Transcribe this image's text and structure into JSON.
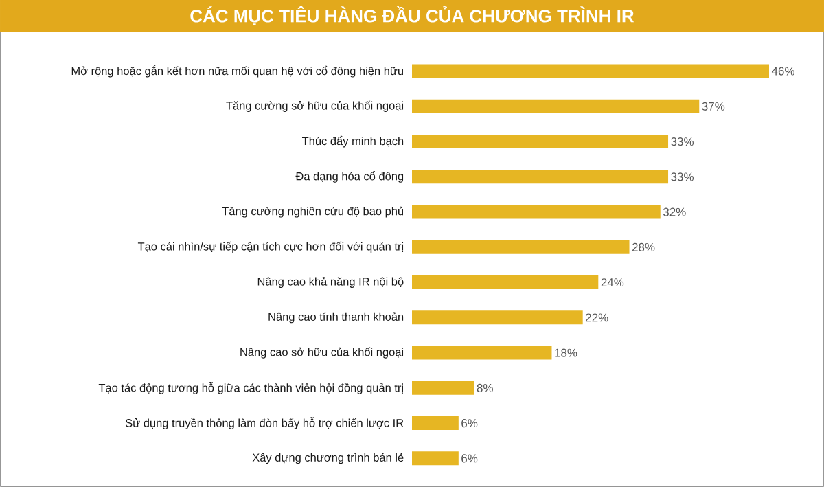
{
  "chart_data": {
    "type": "bar",
    "orientation": "horizontal",
    "title": "CÁC MỤC TIÊU HÀNG ĐẦU CỦA CHƯƠNG TRÌNH IR",
    "categories": [
      "Mở rộng hoặc gắn kết hơn nữa mối quan hệ với cổ đông hiện hữu",
      "Tăng cường sở hữu của khối ngoại",
      "Thúc đẩy minh bạch",
      "Đa dạng hóa cổ đông",
      "Tăng cường nghiên cứu độ bao phủ",
      "Tạo cái nhìn/sự tiếp cận tích cực hơn đối với quản trị",
      "Nâng cao khả năng IR nội bộ",
      "Nâng cao tính thanh khoản",
      "Nâng cao sở hữu của khối ngoại",
      "Tạo tác động tương hỗ giữa các thành viên hội đồng quản trị",
      "Sử dụng truyền thông làm đòn bẩy hỗ trợ chiến lược IR",
      "Xây dựng chương trình bán lẻ"
    ],
    "values": [
      46,
      37,
      33,
      33,
      32,
      28,
      24,
      22,
      18,
      8,
      6,
      6
    ],
    "value_labels": [
      "46%",
      "37%",
      "33%",
      "33%",
      "32%",
      "28%",
      "24%",
      "22%",
      "18%",
      "8%",
      "6%",
      "6%"
    ],
    "color": "#e6b623"
  }
}
